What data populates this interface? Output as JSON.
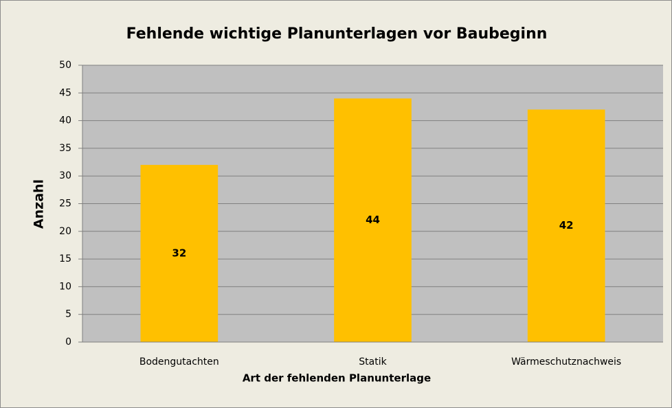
{
  "chart_data": {
    "type": "bar",
    "title": "Fehlende wichtige Planunterlagen vor Baubeginn",
    "x_label": "Art der fehlenden Planunterlage",
    "y_label": "Anzahl",
    "categories": [
      "Bodengutachten",
      "Statik",
      "Wärmeschutznachweis"
    ],
    "values": [
      32,
      44,
      42
    ],
    "color": "#ffc000",
    "ylim": [
      0,
      50
    ],
    "yticks": [
      0,
      5,
      10,
      15,
      20,
      25,
      30,
      35,
      40,
      45,
      50
    ],
    "grid": true
  }
}
